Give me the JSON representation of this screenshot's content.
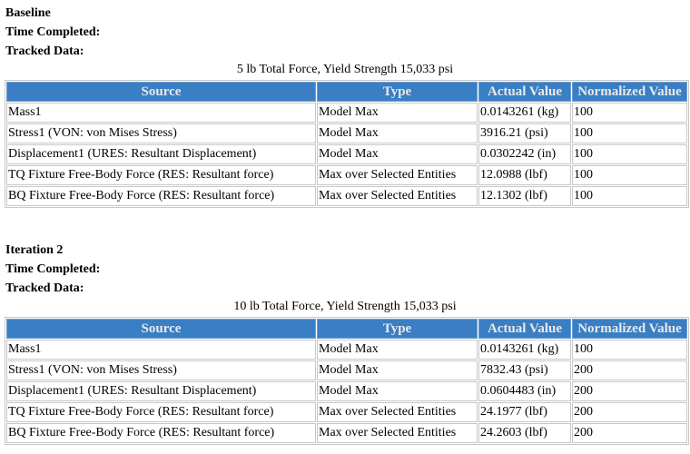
{
  "sections": [
    {
      "title": "Baseline",
      "time_completed_label": "Time Completed:",
      "tracked_data_label": "Tracked Data:",
      "caption": "5 lb Total Force, Yield Strength 15,033 psi",
      "columns": [
        "Source",
        "Type",
        "Actual Value",
        "Normalized Value"
      ],
      "rows": [
        [
          "Mass1",
          "Model Max",
          "0.0143261 (kg)",
          "100"
        ],
        [
          "Stress1 (VON: von Mises Stress)",
          "Model Max",
          "3916.21 (psi)",
          "100"
        ],
        [
          "Displacement1 (URES: Resultant Displacement)",
          "Model Max",
          "0.0302242 (in)",
          "100"
        ],
        [
          "TQ Fixture Free-Body Force (RES: Resultant force)",
          "Max over Selected Entities",
          "12.0988 (lbf)",
          "100"
        ],
        [
          "BQ Fixture Free-Body Force (RES: Resultant force)",
          "Max over Selected Entities",
          "12.1302 (lbf)",
          "100"
        ]
      ]
    },
    {
      "title": "Iteration 2",
      "time_completed_label": "Time Completed:",
      "tracked_data_label": "Tracked Data:",
      "caption": "10 lb Total Force, Yield Strength 15,033 psi",
      "columns": [
        "Source",
        "Type",
        "Actual Value",
        "Normalized Value"
      ],
      "rows": [
        [
          "Mass1",
          "Model Max",
          "0.0143261 (kg)",
          "100"
        ],
        [
          "Stress1 (VON: von Mises Stress)",
          "Model Max",
          "7832.43 (psi)",
          "200"
        ],
        [
          "Displacement1 (URES: Resultant Displacement)",
          "Model Max",
          "0.0604483 (in)",
          "200"
        ],
        [
          "TQ Fixture Free-Body Force (RES: Resultant force)",
          "Max over Selected Entities",
          "24.1977 (lbf)",
          "200"
        ],
        [
          "BQ Fixture Free-Body Force (RES: Resultant force)",
          "Max over Selected Entities",
          "24.2603 (lbf)",
          "200"
        ]
      ]
    }
  ]
}
